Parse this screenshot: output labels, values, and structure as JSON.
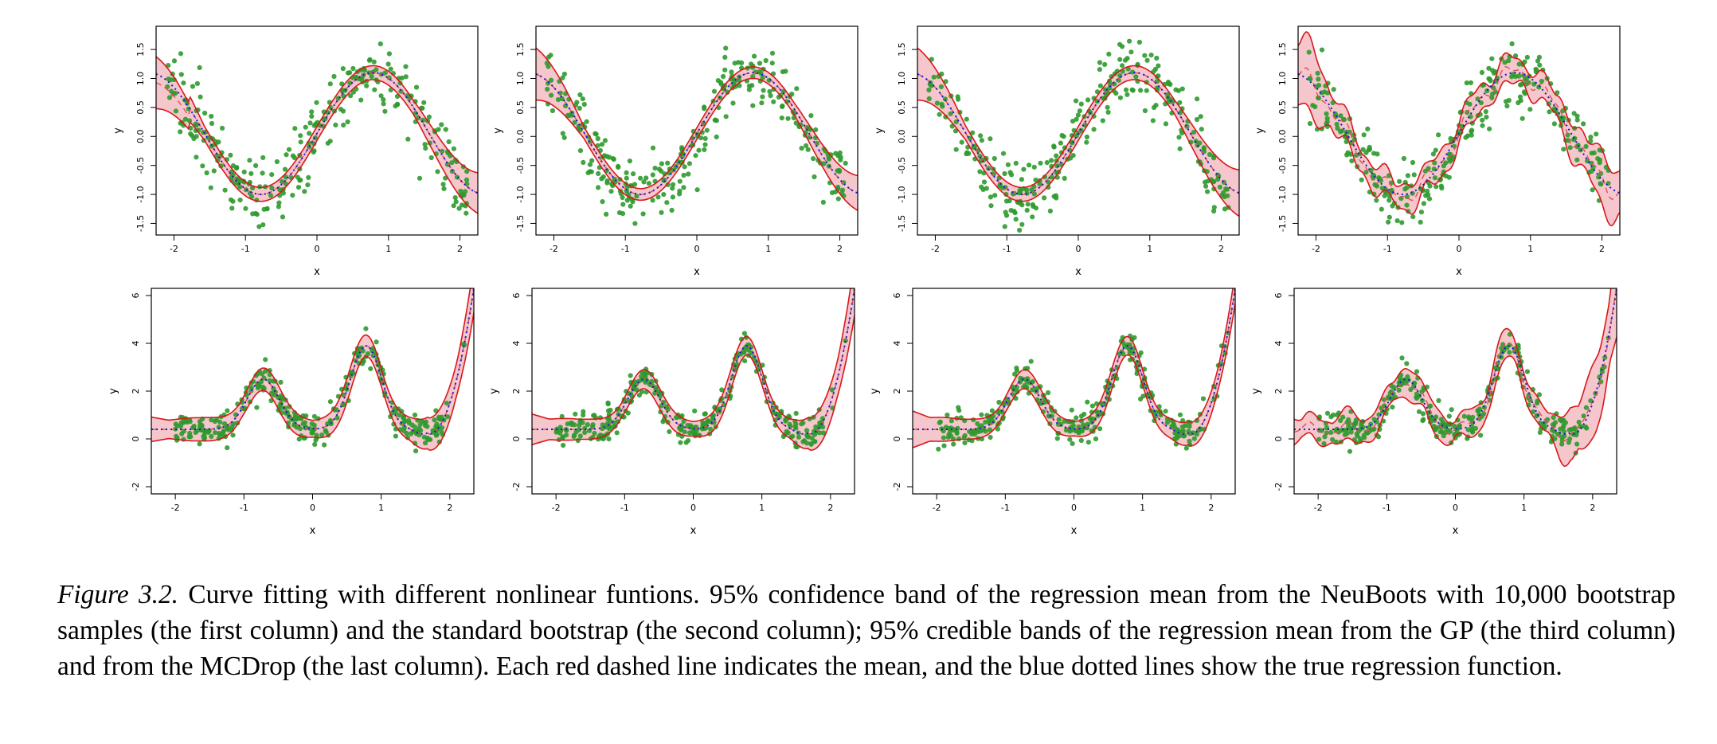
{
  "caption": {
    "label": "Figure 3.2.",
    "text": " Curve fitting with different nonlinear funtions. 95% confidence band of the regression mean from the NeuBoots with 10,000 bootstrap samples (the first column) and the standard bootstrap (the second column); 95% credible bands of the regression mean from the GP (the third column) and from the MCDrop (the last column). Each red dashed line indicates the mean, and the blue dotted lines show the true regression function."
  },
  "colors": {
    "band_fill": "#f5c6cb",
    "band_edge": "#d7191c",
    "mean_line": "#e0505a",
    "true_line": "#1a1acc",
    "points": "#2e9a2e"
  },
  "chart_data": [
    {
      "type": "scatter",
      "row": 1,
      "col": 1,
      "method": "NeuBoots",
      "xlabel": "x",
      "ylabel": "y",
      "xlim": [
        -2.25,
        2.25
      ],
      "ylim": [
        -1.7,
        1.9
      ],
      "xticks": [
        "-2",
        "-1",
        "0",
        "1",
        "2"
      ],
      "yticks": [
        "-1.5",
        "-1.0",
        "-0.5",
        "0.0",
        "0.5",
        "1.0",
        "1.5"
      ],
      "true_function": "sin(2x)",
      "band": "smooth",
      "band_width": [
        0.45,
        0.12,
        0.35
      ]
    },
    {
      "type": "scatter",
      "row": 1,
      "col": 2,
      "method": "Standard bootstrap",
      "xlabel": "x",
      "ylabel": "y",
      "xlim": [
        -2.25,
        2.25
      ],
      "ylim": [
        -1.7,
        1.9
      ],
      "xticks": [
        "-2",
        "-1",
        "0",
        "1",
        "2"
      ],
      "yticks": [
        "-1.5",
        "-1.0",
        "-0.5",
        "0.0",
        "0.5",
        "1.0",
        "1.5"
      ],
      "true_function": "sin(2x)",
      "band": "smooth",
      "band_width": [
        0.45,
        0.1,
        0.3
      ]
    },
    {
      "type": "scatter",
      "row": 1,
      "col": 3,
      "method": "GP",
      "xlabel": "x",
      "ylabel": "y",
      "xlim": [
        -2.25,
        2.25
      ],
      "ylim": [
        -1.7,
        1.9
      ],
      "xticks": [
        "-2",
        "-1",
        "0",
        "1",
        "2"
      ],
      "yticks": [
        "-1.5",
        "-1.0",
        "-0.5",
        "0.0",
        "0.5",
        "1.0",
        "1.5"
      ],
      "true_function": "sin(2x)",
      "band": "smooth",
      "band_width": [
        0.45,
        0.12,
        0.4
      ]
    },
    {
      "type": "scatter",
      "row": 1,
      "col": 4,
      "method": "MCDrop",
      "xlabel": "x",
      "ylabel": "y",
      "xlim": [
        -2.25,
        2.25
      ],
      "ylim": [
        -1.7,
        1.9
      ],
      "xticks": [
        "-2",
        "-1",
        "0",
        "1",
        "2"
      ],
      "yticks": [
        "-1.5",
        "-1.0",
        "-0.5",
        "0.0",
        "0.5",
        "1.0",
        "1.5"
      ],
      "true_function": "sin(2x)",
      "band": "wiggly",
      "band_width": [
        0.5,
        0.15,
        0.35
      ]
    },
    {
      "type": "scatter",
      "row": 2,
      "col": 1,
      "method": "NeuBoots",
      "xlabel": "x",
      "ylabel": "y",
      "xlim": [
        -2.35,
        2.35
      ],
      "ylim": [
        -2.3,
        6.3
      ],
      "xticks": [
        "-2",
        "-1",
        "0",
        "1",
        "2"
      ],
      "yticks": [
        "-2",
        "0",
        "2",
        "4",
        "6"
      ],
      "true_function": "2*exp(-x^2) ... two-peak wave",
      "band": "smooth",
      "band_width": [
        0.4,
        0.35,
        0.8
      ]
    },
    {
      "type": "scatter",
      "row": 2,
      "col": 2,
      "method": "Standard bootstrap",
      "xlabel": "x",
      "ylabel": "y",
      "xlim": [
        -2.35,
        2.35
      ],
      "ylim": [
        -2.3,
        6.3
      ],
      "xticks": [
        "-2",
        "-1",
        "0",
        "1",
        "2"
      ],
      "yticks": [
        "-2",
        "0",
        "2",
        "4",
        "6"
      ],
      "true_function": "two-peak wave",
      "band": "smooth",
      "band_width": [
        0.5,
        0.3,
        0.9
      ]
    },
    {
      "type": "scatter",
      "row": 2,
      "col": 3,
      "method": "GP",
      "xlabel": "x",
      "ylabel": "y",
      "xlim": [
        -2.35,
        2.35
      ],
      "ylim": [
        -2.3,
        6.3
      ],
      "xticks": [
        "-2",
        "-1",
        "0",
        "1",
        "2"
      ],
      "yticks": [
        "-2",
        "0",
        "2",
        "4",
        "6"
      ],
      "true_function": "two-peak wave",
      "band": "smooth",
      "band_width": [
        0.6,
        0.3,
        0.5
      ]
    },
    {
      "type": "scatter",
      "row": 2,
      "col": 4,
      "method": "MCDrop",
      "xlabel": "x",
      "ylabel": "y",
      "xlim": [
        -2.35,
        2.35
      ],
      "ylim": [
        -2.3,
        6.3
      ],
      "xticks": [
        "-2",
        "-1",
        "0",
        "1",
        "2"
      ],
      "yticks": [
        "-2",
        "0",
        "2",
        "4",
        "6"
      ],
      "true_function": "two-peak wave",
      "band": "wiggly",
      "band_width": [
        0.3,
        0.3,
        1.2
      ]
    }
  ]
}
